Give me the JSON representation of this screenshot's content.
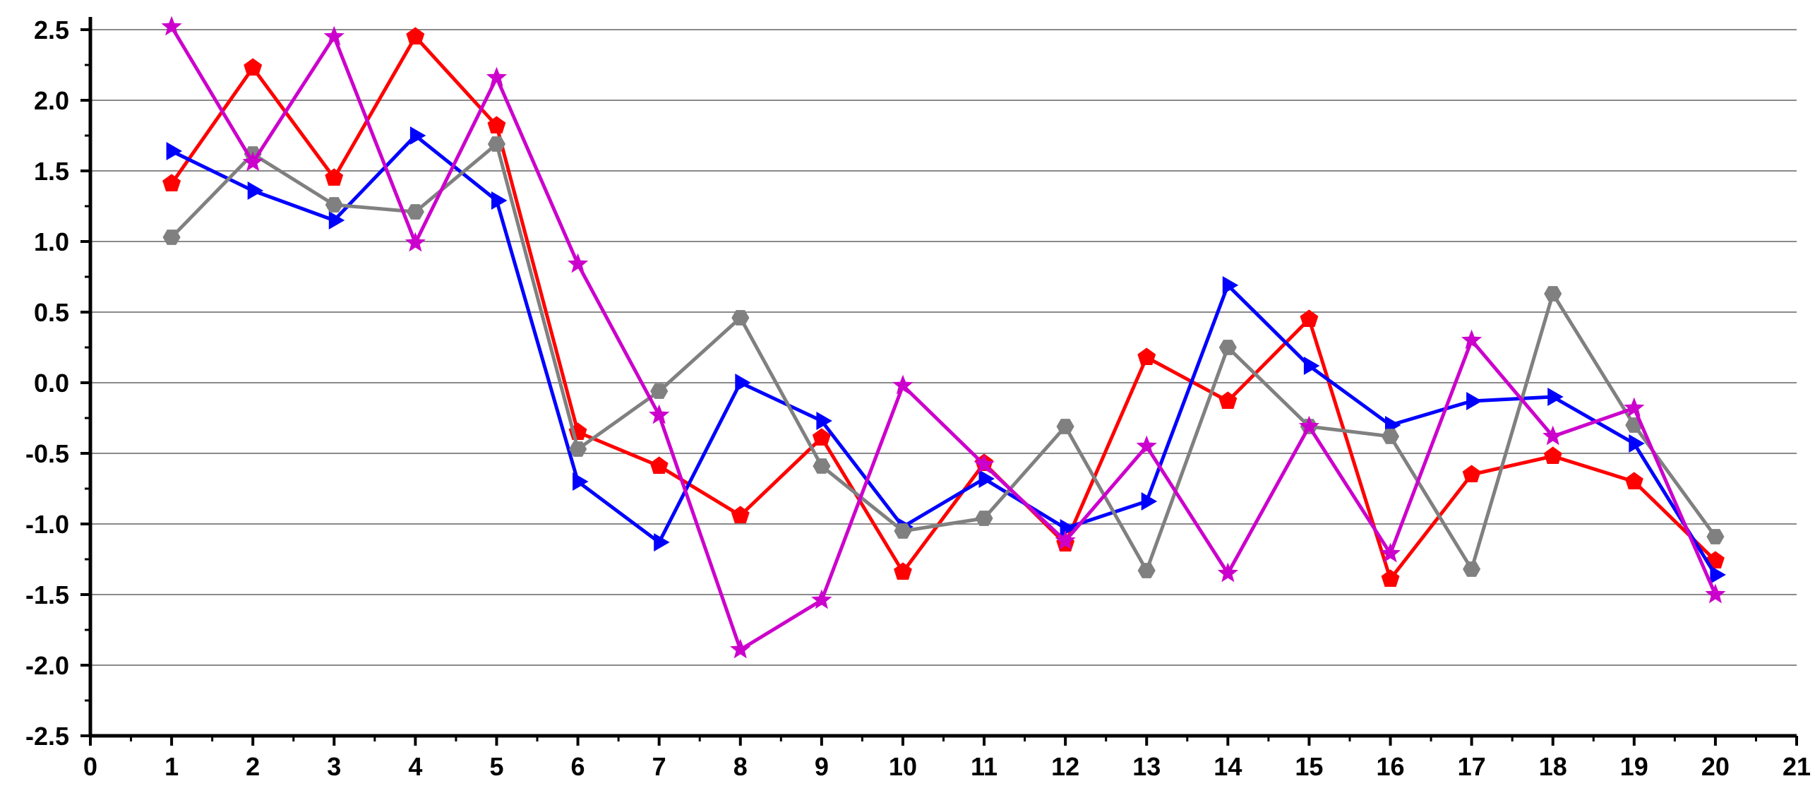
{
  "chart_data": {
    "type": "line",
    "title": "",
    "xlabel": "",
    "ylabel": "",
    "xlim": [
      0,
      21
    ],
    "ylim": [
      -2.5,
      2.5
    ],
    "x": [
      1,
      2,
      3,
      4,
      5,
      6,
      7,
      8,
      9,
      10,
      11,
      12,
      13,
      14,
      15,
      16,
      17,
      18,
      19,
      20
    ],
    "x_ticks": [
      0,
      1,
      2,
      3,
      4,
      5,
      6,
      7,
      8,
      9,
      10,
      11,
      12,
      13,
      14,
      15,
      16,
      17,
      18,
      19,
      20,
      21
    ],
    "x_tick_labels": [
      "0",
      "1",
      "2",
      "3",
      "4",
      "5",
      "6",
      "7",
      "8",
      "9",
      "10",
      "11",
      "12",
      "13",
      "14",
      "15",
      "16",
      "17",
      "18",
      "19",
      "20",
      "21"
    ],
    "y_ticks": [
      -2.5,
      -2.0,
      -1.5,
      -1.0,
      -0.5,
      0.0,
      0.5,
      1.0,
      1.5,
      2.0,
      2.5
    ],
    "y_tick_labels": [
      "-2.5",
      "-2.0",
      "-1.5",
      "-1.0",
      "-0.5",
      "0.0",
      "0.5",
      "1.0",
      "1.5",
      "2.0",
      "2.5"
    ],
    "grid": "horizontal",
    "legend": "none",
    "series": [
      {
        "color": "#ff0000",
        "marker": "pentagon",
        "values": [
          1.41,
          2.23,
          1.45,
          2.45,
          1.82,
          -0.35,
          -0.59,
          -0.94,
          -0.39,
          -1.34,
          -0.57,
          -1.14,
          0.18,
          -0.13,
          0.45,
          -1.39,
          -0.65,
          -0.52,
          -0.7,
          -1.26
        ]
      },
      {
        "color": "#0000ff",
        "marker": "triangle-right",
        "values": [
          1.64,
          1.36,
          1.15,
          1.75,
          1.29,
          -0.7,
          -1.13,
          0.0,
          -0.27,
          -1.02,
          -0.68,
          -1.03,
          -0.84,
          0.69,
          0.12,
          -0.3,
          -0.13,
          -0.1,
          -0.43,
          -1.36
        ]
      },
      {
        "color": "#808080",
        "marker": "hexagon",
        "values": [
          1.03,
          1.62,
          1.26,
          1.21,
          1.69,
          -0.47,
          -0.06,
          0.46,
          -0.59,
          -1.05,
          -0.96,
          -0.31,
          -1.33,
          0.25,
          -0.31,
          -0.38,
          -1.32,
          0.63,
          -0.3,
          -1.09
        ]
      },
      {
        "color": "#cc00cc",
        "marker": "star",
        "values": [
          2.52,
          1.56,
          2.45,
          0.99,
          2.16,
          0.84,
          -0.23,
          -1.89,
          -1.54,
          -0.02,
          -0.58,
          -1.12,
          -0.45,
          -1.35,
          -0.31,
          -1.21,
          0.3,
          -0.38,
          -0.18,
          -1.5
        ]
      }
    ]
  }
}
